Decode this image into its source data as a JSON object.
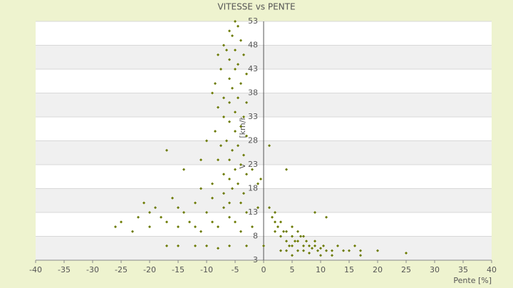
{
  "chart_data": {
    "type": "scatter",
    "title": "VITESSE vs PENTE",
    "x_label": "Pente [%]",
    "y_label": "Vitesse [km/h]",
    "xlim": [
      -40,
      40
    ],
    "xticks": [
      -40,
      -35,
      -30,
      -25,
      -20,
      -15,
      -10,
      -5,
      0,
      5,
      10,
      15,
      20,
      25,
      30,
      35,
      40
    ],
    "ylim": [
      3,
      53
    ],
    "yticks": [
      3,
      8,
      13,
      18,
      23,
      28,
      33,
      38,
      43,
      48,
      53
    ],
    "grid": "bands",
    "series": [
      {
        "color": "#6b7a00",
        "x": [
          -5,
          -4.5,
          -6,
          -5.5,
          -4,
          -7,
          -6.5,
          -5,
          -3.5,
          -8,
          -6,
          -4.5,
          -7.5,
          -5,
          -3,
          -6,
          -8.5,
          -4,
          -5.5,
          -9,
          -7,
          -4.5,
          -3,
          -6,
          -8,
          -5,
          -3.5,
          -7,
          -6,
          -4,
          -8.5,
          -5,
          -3,
          -6.5,
          -4.5,
          -7.5,
          -5.5,
          -3.5,
          -6,
          -8,
          -4,
          -5,
          -7,
          -3,
          -6,
          -4.5,
          -9,
          -5.5,
          -7,
          -3.5,
          -2,
          -1,
          -0.5,
          1,
          -10,
          -11,
          -4,
          -6,
          -26,
          -25,
          -23,
          -22,
          -21,
          -20,
          -19,
          -18,
          -17,
          -17,
          -16,
          -15,
          -14,
          -14,
          -13,
          -12,
          -11,
          -11,
          -10,
          -9,
          -9,
          -8,
          -7,
          -6,
          -5,
          -4,
          -3,
          -2,
          -1,
          -20,
          -15,
          -12,
          -17,
          -15,
          -12,
          -10,
          -8,
          -6,
          -3,
          0,
          1,
          1.5,
          2,
          2,
          2.5,
          3,
          3,
          3.5,
          4,
          4,
          4.5,
          5,
          5,
          5.5,
          6,
          6,
          6.5,
          7,
          7,
          7.5,
          8,
          8,
          8.5,
          9,
          9.5,
          10,
          10,
          10.5,
          11,
          12,
          12,
          13,
          14,
          15,
          16,
          17,
          17,
          20,
          25,
          3,
          4,
          5,
          6,
          7,
          9,
          2,
          4,
          9,
          11,
          5
        ],
        "values": [
          53,
          52,
          51,
          50,
          49,
          48,
          47,
          47,
          46,
          46,
          45,
          44,
          43,
          43,
          42,
          41,
          40,
          40,
          39,
          38,
          37,
          37,
          36,
          36,
          35,
          34,
          33,
          33,
          32,
          31,
          30,
          30,
          29,
          28,
          27,
          27,
          26,
          25,
          24,
          24,
          23,
          22,
          21,
          21,
          20,
          19,
          19,
          18,
          17,
          17,
          22,
          19,
          20,
          27,
          28,
          24,
          15,
          15,
          10,
          11,
          9,
          12,
          15,
          10,
          14,
          12,
          26,
          11,
          16,
          10,
          22,
          13,
          11,
          15,
          9,
          18,
          13,
          11,
          16,
          10,
          14,
          12,
          11,
          9,
          13,
          10,
          14,
          13,
          14,
          10,
          6,
          6,
          6,
          6,
          5.5,
          6,
          6,
          6,
          14,
          12,
          11,
          9,
          10,
          8,
          11,
          9,
          7,
          9,
          6,
          8,
          6,
          7,
          5,
          7,
          8,
          6,
          5,
          7,
          6,
          4.5,
          5.5,
          6,
          5,
          5.5,
          4,
          6,
          5,
          5,
          4,
          6,
          5,
          5,
          6,
          5,
          4,
          5,
          4.5,
          5,
          5,
          4,
          9,
          8,
          7,
          13,
          22,
          13,
          12,
          10
        ]
      }
    ]
  }
}
